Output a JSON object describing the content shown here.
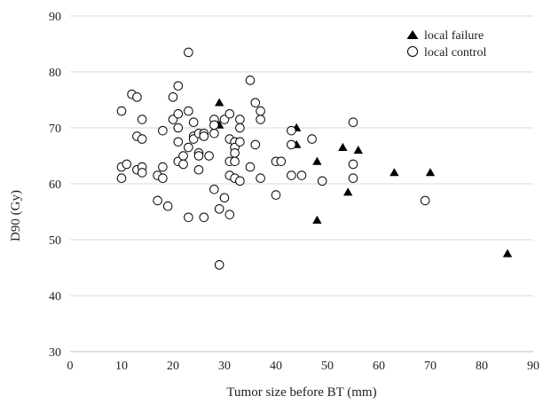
{
  "chart_data": {
    "type": "scatter",
    "xlabel": "Tumor size before BT (mm)",
    "ylabel": "D90 (Gy)",
    "xlim": [
      0,
      90
    ],
    "ylim": [
      30,
      90
    ],
    "xticks": [
      "0",
      "10",
      "20",
      "30",
      "40",
      "50",
      "60",
      "70",
      "80",
      "90"
    ],
    "yticks": [
      "30",
      "40",
      "50",
      "60",
      "70",
      "80",
      "90"
    ],
    "grid": "horizontal",
    "legend_position": "top-right",
    "series": [
      {
        "name": "local failure",
        "marker": "filled-triangle",
        "color": "#000000",
        "points": [
          [
            29,
            74.5
          ],
          [
            29,
            70.5
          ],
          [
            44,
            70
          ],
          [
            44,
            67
          ],
          [
            48,
            64
          ],
          [
            53,
            66.5
          ],
          [
            56,
            66
          ],
          [
            54,
            58.5
          ],
          [
            48,
            53.5
          ],
          [
            63,
            62
          ],
          [
            70,
            62
          ],
          [
            85,
            47.5
          ]
        ]
      },
      {
        "name": "local control",
        "marker": "open-circle",
        "color": "#000000",
        "points": [
          [
            10,
            73
          ],
          [
            10,
            63
          ],
          [
            10,
            61
          ],
          [
            11,
            63.5
          ],
          [
            12,
            76
          ],
          [
            13,
            75.5
          ],
          [
            13,
            68.5
          ],
          [
            13,
            62.5
          ],
          [
            14,
            71.5
          ],
          [
            14,
            68
          ],
          [
            14,
            63
          ],
          [
            14,
            62
          ],
          [
            17,
            61.5
          ],
          [
            17,
            57
          ],
          [
            18,
            69.5
          ],
          [
            18,
            63
          ],
          [
            18,
            61
          ],
          [
            19,
            56
          ],
          [
            20,
            75.5
          ],
          [
            20,
            71.5
          ],
          [
            21,
            77.5
          ],
          [
            21,
            72.5
          ],
          [
            21,
            70
          ],
          [
            21,
            67.5
          ],
          [
            21,
            64
          ],
          [
            22,
            65
          ],
          [
            22,
            63.5
          ],
          [
            23,
            83.5
          ],
          [
            23,
            73
          ],
          [
            23,
            66.5
          ],
          [
            23,
            54
          ],
          [
            24,
            71
          ],
          [
            24,
            68.5
          ],
          [
            24,
            68
          ],
          [
            25,
            69
          ],
          [
            25,
            65.5
          ],
          [
            25,
            65
          ],
          [
            25,
            62.5
          ],
          [
            26,
            69
          ],
          [
            26,
            68.5
          ],
          [
            26,
            54
          ],
          [
            27,
            65
          ],
          [
            28,
            71.5
          ],
          [
            28,
            70.5
          ],
          [
            28,
            69
          ],
          [
            28,
            59
          ],
          [
            29,
            55.5
          ],
          [
            29,
            45.5
          ],
          [
            30,
            71.5
          ],
          [
            30,
            57.5
          ],
          [
            31,
            72.5
          ],
          [
            31,
            68
          ],
          [
            31,
            64
          ],
          [
            31,
            61.5
          ],
          [
            31,
            54.5
          ],
          [
            32,
            67.5
          ],
          [
            32,
            66.5
          ],
          [
            32,
            65.5
          ],
          [
            32,
            64
          ],
          [
            32,
            61
          ],
          [
            33,
            71.5
          ],
          [
            33,
            70
          ],
          [
            33,
            67.5
          ],
          [
            33,
            60.5
          ],
          [
            35,
            78.5
          ],
          [
            35,
            63
          ],
          [
            36,
            74.5
          ],
          [
            36,
            67
          ],
          [
            37,
            73
          ],
          [
            37,
            71.5
          ],
          [
            37,
            61
          ],
          [
            40,
            64
          ],
          [
            40,
            58
          ],
          [
            41,
            64
          ],
          [
            43,
            69.5
          ],
          [
            43,
            67
          ],
          [
            43,
            61.5
          ],
          [
            45,
            61.5
          ],
          [
            47,
            68
          ],
          [
            49,
            60.5
          ],
          [
            55,
            71
          ],
          [
            55,
            63.5
          ],
          [
            55,
            61
          ],
          [
            69,
            57
          ]
        ]
      }
    ]
  }
}
